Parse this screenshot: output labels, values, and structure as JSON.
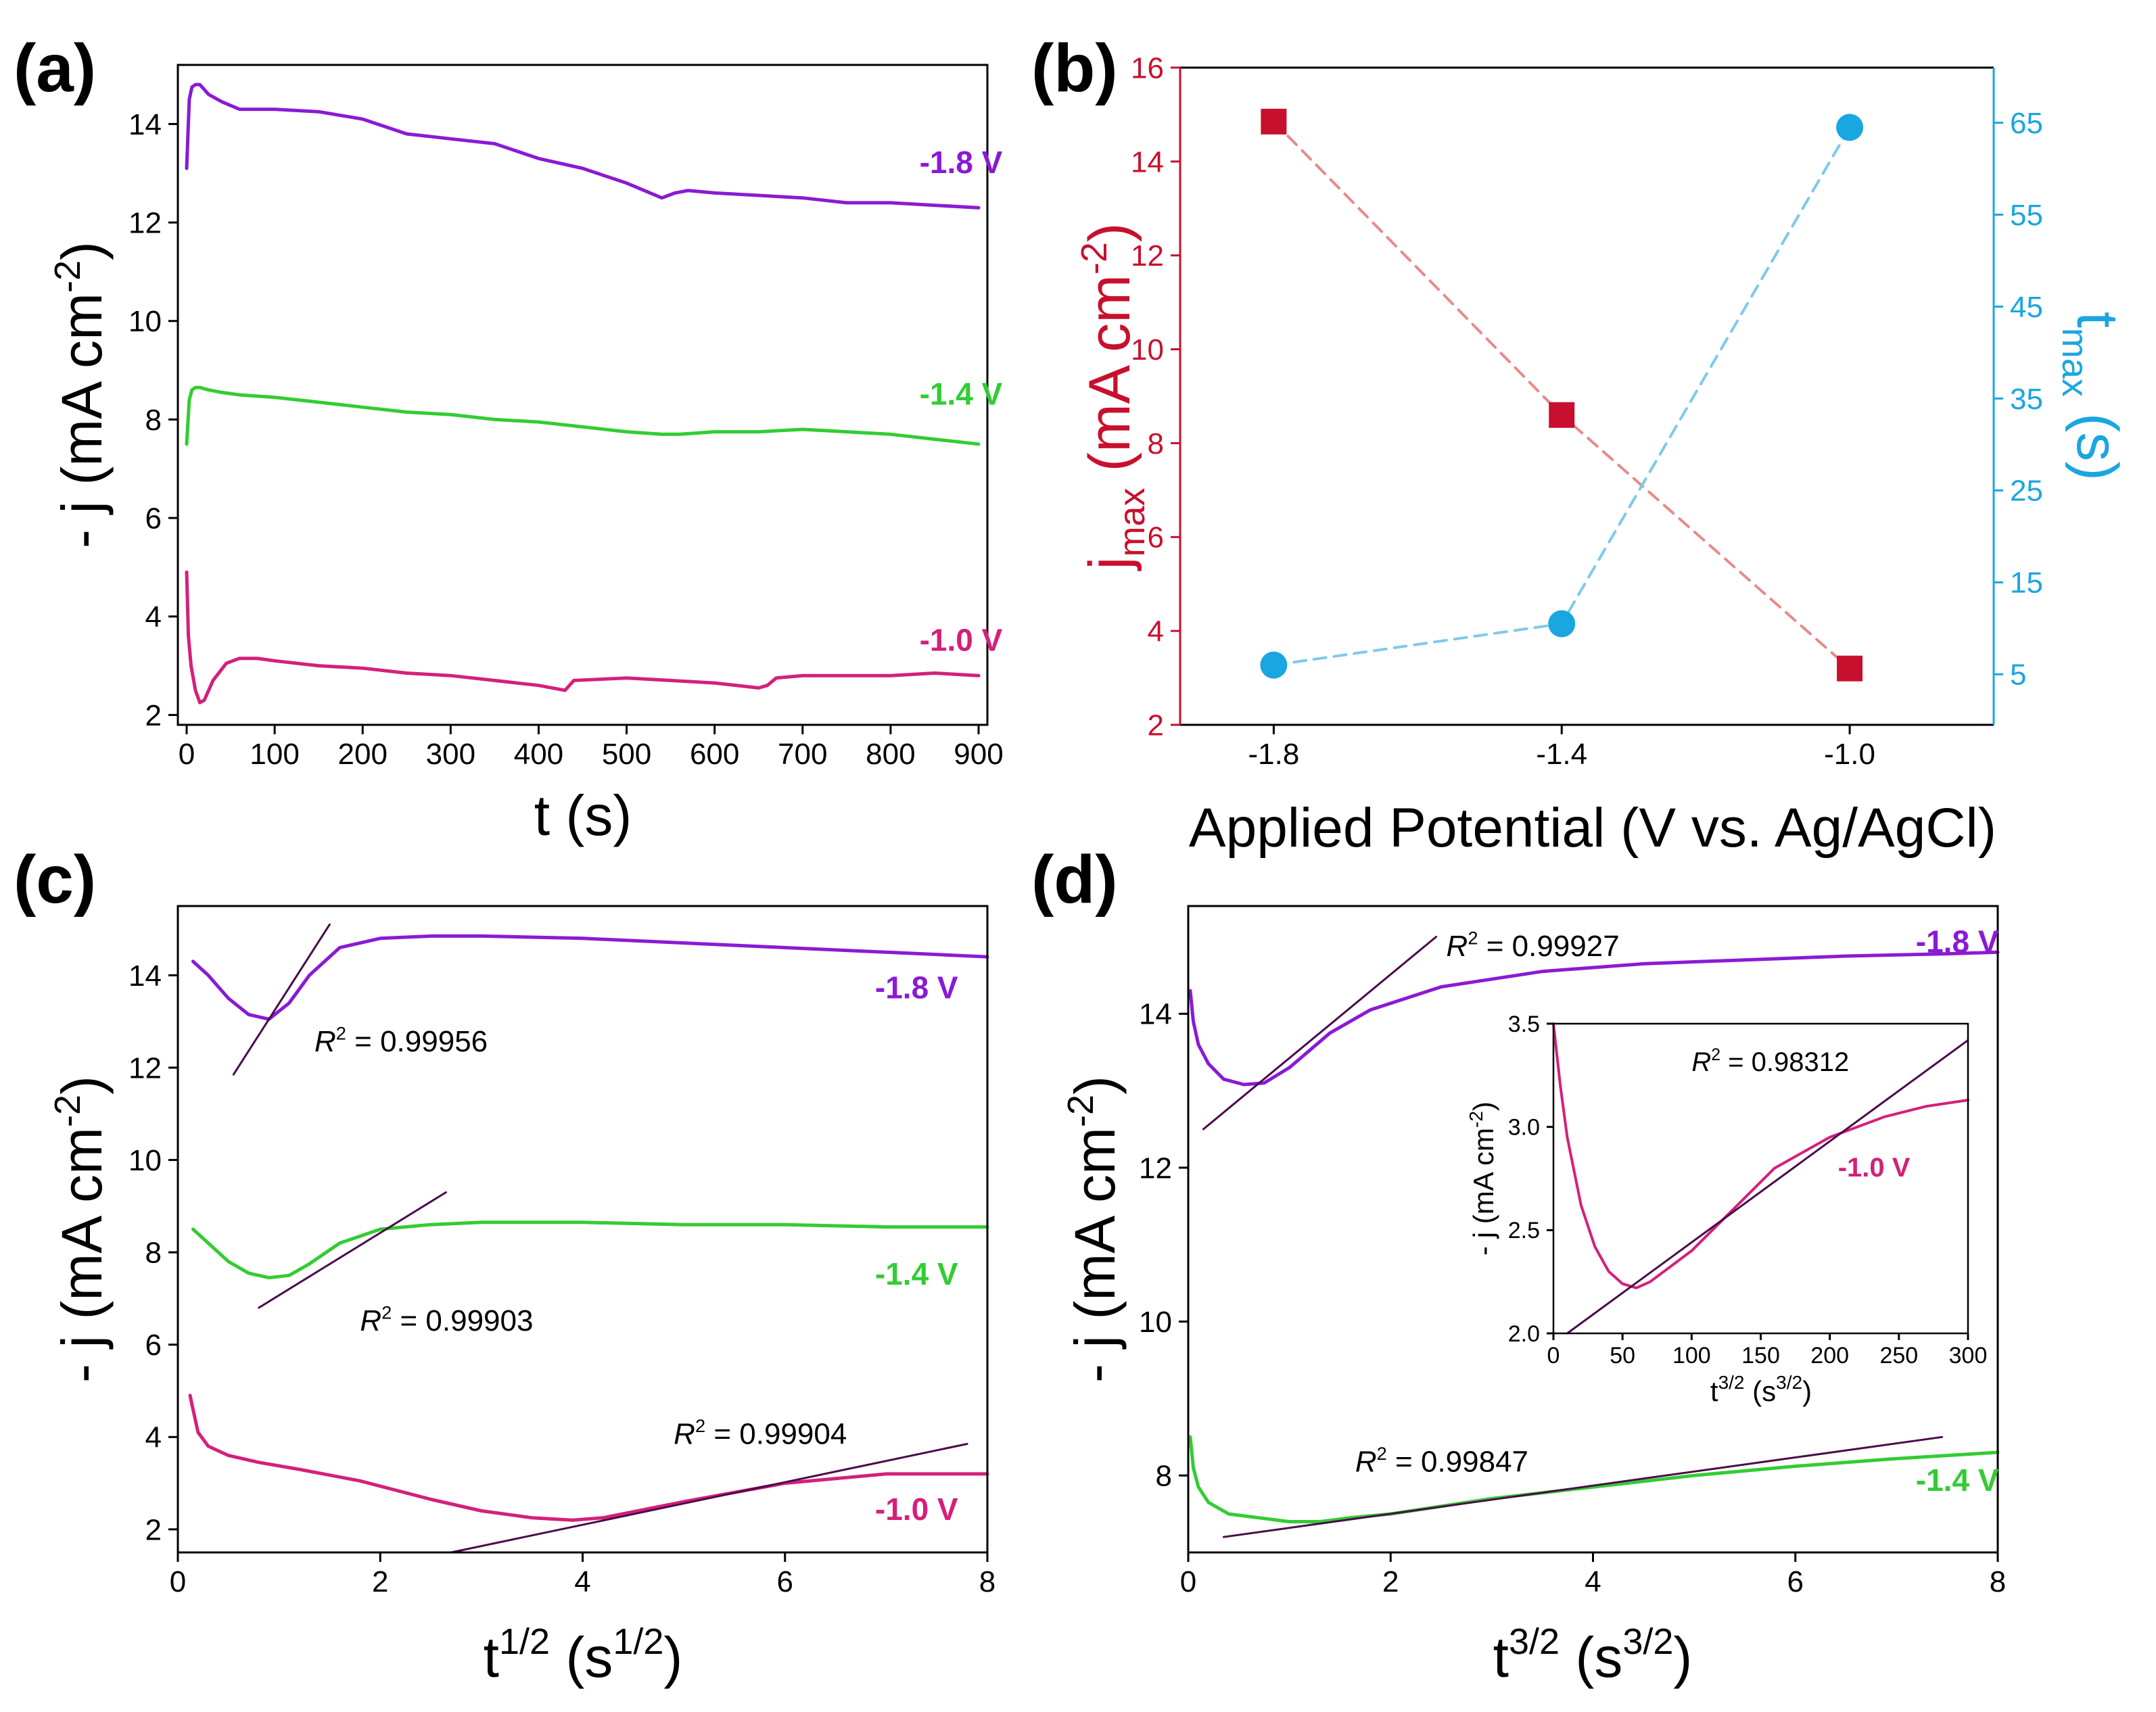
{
  "colors": {
    "purple": "#8a1ad4",
    "green": "#33cc33",
    "magenta": "#d4207a",
    "fit": "#4a0a4a",
    "red": "#c8102e",
    "blue": "#1aa6e0",
    "red_dash": "#e88a8a",
    "blue_dash": "#7fc9ea"
  },
  "chart_data": [
    {
      "id": "a",
      "panel_label": "(a)",
      "type": "line",
      "xlabel": "t (s)",
      "ylabel": "- j (mA cm",
      "ylabel_sup": "-2",
      "ylabel_tail": ")",
      "xlim": [
        -10,
        910
      ],
      "ylim": [
        1.8,
        15.2
      ],
      "xticks": [
        "0",
        "100",
        "200",
        "300",
        "400",
        "500",
        "600",
        "700",
        "800",
        "900"
      ],
      "yticks": [
        "2",
        "4",
        "6",
        "8",
        "10",
        "12",
        "14"
      ],
      "series": [
        {
          "name": "-1.8 V",
          "color": "#8a1ad4",
          "x": [
            0,
            3,
            6,
            10,
            15,
            25,
            40,
            60,
            100,
            150,
            200,
            250,
            300,
            350,
            400,
            450,
            500,
            540,
            555,
            570,
            600,
            650,
            700,
            750,
            800,
            850,
            900
          ],
          "y": [
            13.1,
            14.5,
            14.75,
            14.8,
            14.8,
            14.6,
            14.45,
            14.3,
            14.3,
            14.25,
            14.1,
            13.8,
            13.7,
            13.6,
            13.3,
            13.1,
            12.8,
            12.5,
            12.6,
            12.65,
            12.6,
            12.55,
            12.5,
            12.4,
            12.4,
            12.35,
            12.3
          ]
        },
        {
          "name": "-1.4 V",
          "color": "#33cc33",
          "x": [
            0,
            3,
            6,
            10,
            15,
            25,
            40,
            60,
            100,
            150,
            200,
            250,
            300,
            350,
            400,
            450,
            500,
            540,
            560,
            600,
            650,
            700,
            750,
            800,
            850,
            900
          ],
          "y": [
            7.5,
            8.4,
            8.6,
            8.65,
            8.65,
            8.6,
            8.55,
            8.5,
            8.45,
            8.35,
            8.25,
            8.15,
            8.1,
            8.0,
            7.95,
            7.85,
            7.75,
            7.7,
            7.7,
            7.75,
            7.75,
            7.8,
            7.75,
            7.7,
            7.6,
            7.5
          ]
        },
        {
          "name": "-1.0 V",
          "color": "#d4207a",
          "x": [
            0,
            2,
            5,
            10,
            15,
            20,
            30,
            45,
            60,
            80,
            100,
            150,
            200,
            250,
            300,
            350,
            400,
            430,
            440,
            500,
            550,
            600,
            650,
            660,
            670,
            700,
            750,
            800,
            850,
            900
          ],
          "y": [
            4.9,
            3.6,
            3.0,
            2.5,
            2.25,
            2.3,
            2.7,
            3.05,
            3.15,
            3.15,
            3.1,
            3.0,
            2.95,
            2.85,
            2.8,
            2.7,
            2.6,
            2.5,
            2.7,
            2.75,
            2.7,
            2.65,
            2.55,
            2.6,
            2.75,
            2.8,
            2.8,
            2.8,
            2.85,
            2.8
          ]
        }
      ],
      "annotations": [
        {
          "text": "-1.8 V",
          "x": 880,
          "y": 13.0,
          "color": "#8a1ad4"
        },
        {
          "text": "-1.4 V",
          "x": 880,
          "y": 8.3,
          "color": "#33cc33"
        },
        {
          "text": "-1.0 V",
          "x": 880,
          "y": 3.3,
          "color": "#d4207a"
        }
      ]
    },
    {
      "id": "b",
      "panel_label": "(b)",
      "type": "scatter",
      "xlabel": "Applied Potential (V vs. Ag/AgCl)",
      "ylabel_left": "j",
      "ylabel_left_sub": "max",
      "ylabel_left_tail": " (mA cm",
      "ylabel_left_sup": "-2",
      "ylabel_left_end": ")",
      "ylabel_right": "t",
      "ylabel_right_sub": "max",
      "ylabel_right_tail": " (s)",
      "xlim": [
        -1.93,
        -0.8
      ],
      "ylim_left": [
        2,
        16
      ],
      "ylim_right": [
        -0.5,
        71
      ],
      "xticks": [
        "-1.8",
        "-1.4",
        "-1.0"
      ],
      "yticks_left": [
        "2",
        "4",
        "6",
        "8",
        "10",
        "12",
        "14",
        "16"
      ],
      "yticks_right": [
        "5",
        "15",
        "25",
        "35",
        "45",
        "55",
        "65"
      ],
      "series": [
        {
          "name": "j_max",
          "axis": "left",
          "marker": "square",
          "color": "#c8102e",
          "line_color": "#e88a8a",
          "x": [
            -1.8,
            -1.4,
            -1.0
          ],
          "y": [
            14.85,
            8.6,
            3.2
          ]
        },
        {
          "name": "t_max",
          "axis": "right",
          "marker": "circle",
          "color": "#1aa6e0",
          "line_color": "#7fc9ea",
          "x": [
            -1.8,
            -1.4,
            -1.0
          ],
          "y": [
            6,
            10.5,
            64.5
          ]
        }
      ]
    },
    {
      "id": "c",
      "panel_label": "(c)",
      "type": "line",
      "xlabel": "t",
      "xlabel_sup": "1/2",
      "xlabel_tail": " (s",
      "xlabel_sup2": "1/2",
      "xlabel_end": ")",
      "ylabel": "- j (mA cm",
      "ylabel_sup": "-2",
      "ylabel_tail": ")",
      "xlim": [
        0,
        8
      ],
      "ylim": [
        1.5,
        15.5
      ],
      "xticks": [
        "0",
        "2",
        "4",
        "6",
        "8"
      ],
      "yticks": [
        "2",
        "4",
        "6",
        "8",
        "10",
        "12",
        "14"
      ],
      "series": [
        {
          "name": "-1.8 V",
          "color": "#8a1ad4",
          "x": [
            0.15,
            0.3,
            0.5,
            0.7,
            0.9,
            1.1,
            1.3,
            1.6,
            2.0,
            2.5,
            3.0,
            4.0,
            5.0,
            6.0,
            7.0,
            8.0
          ],
          "y": [
            14.3,
            14.0,
            13.5,
            13.15,
            13.05,
            13.4,
            14.0,
            14.6,
            14.8,
            14.85,
            14.85,
            14.8,
            14.7,
            14.6,
            14.5,
            14.4
          ]
        },
        {
          "name": "-1.4 V",
          "color": "#33cc33",
          "x": [
            0.15,
            0.3,
            0.5,
            0.7,
            0.9,
            1.1,
            1.3,
            1.6,
            2.0,
            2.5,
            3.0,
            4.0,
            5.0,
            6.0,
            7.0,
            8.0
          ],
          "y": [
            8.5,
            8.2,
            7.8,
            7.55,
            7.45,
            7.5,
            7.75,
            8.2,
            8.5,
            8.6,
            8.65,
            8.65,
            8.6,
            8.6,
            8.55,
            8.55
          ]
        },
        {
          "name": "-1.0 V",
          "color": "#d4207a",
          "x": [
            0.12,
            0.15,
            0.2,
            0.3,
            0.5,
            0.8,
            1.2,
            1.8,
            2.5,
            3.0,
            3.5,
            3.9,
            4.2,
            5.0,
            6.0,
            7.0,
            8.0
          ],
          "y": [
            4.9,
            4.6,
            4.1,
            3.8,
            3.6,
            3.45,
            3.3,
            3.05,
            2.65,
            2.4,
            2.25,
            2.2,
            2.25,
            2.6,
            3.0,
            3.2,
            3.2
          ]
        }
      ],
      "fit_lines": [
        {
          "x": [
            0.55,
            1.5
          ],
          "y": [
            11.85,
            15.1
          ],
          "label": "R",
          "label_sup": "2",
          "label_value": " = 0.99956",
          "label_x": 1.35,
          "label_y": 12.35
        },
        {
          "x": [
            0.8,
            2.65
          ],
          "y": [
            6.8,
            9.3
          ],
          "label": "R",
          "label_sup": "2",
          "label_value": " = 0.99903",
          "label_x": 1.8,
          "label_y": 6.3
        },
        {
          "x": [
            2.7,
            7.8
          ],
          "y": [
            1.5,
            3.85
          ],
          "label": "R",
          "label_sup": "2",
          "label_value": " = 0.99904",
          "label_x": 4.9,
          "label_y": 3.85
        }
      ],
      "annotations": [
        {
          "text": "-1.8 V",
          "x": 7.3,
          "y": 13.5,
          "color": "#8a1ad4"
        },
        {
          "text": "-1.4 V",
          "x": 7.3,
          "y": 7.3,
          "color": "#33cc33"
        },
        {
          "text": "-1.0 V",
          "x": 7.3,
          "y": 2.2,
          "color": "#d4207a"
        }
      ]
    },
    {
      "id": "d",
      "panel_label": "(d)",
      "type": "line",
      "xlabel": "t",
      "xlabel_sup": "3/2",
      "xlabel_tail": " (s",
      "xlabel_sup2": "3/2",
      "xlabel_end": ")",
      "ylabel": "- j (mA cm",
      "ylabel_sup": "-2",
      "ylabel_tail": ")",
      "xlim": [
        0,
        8
      ],
      "ylim": [
        7,
        15.4
      ],
      "xticks": [
        "0",
        "2",
        "4",
        "6",
        "8"
      ],
      "yticks": [
        "8",
        "10",
        "12",
        "14"
      ],
      "series": [
        {
          "name": "-1.8 V",
          "color": "#8a1ad4",
          "x": [
            0.02,
            0.05,
            0.1,
            0.2,
            0.35,
            0.55,
            0.75,
            1.0,
            1.4,
            1.8,
            2.5,
            3.5,
            4.5,
            5.5,
            6.5,
            7.5,
            8.0
          ],
          "y": [
            14.3,
            13.9,
            13.6,
            13.35,
            13.15,
            13.08,
            13.1,
            13.3,
            13.75,
            14.05,
            14.35,
            14.55,
            14.65,
            14.7,
            14.75,
            14.78,
            14.8
          ]
        },
        {
          "name": "-1.4 V",
          "color": "#33cc33",
          "x": [
            0.02,
            0.05,
            0.1,
            0.2,
            0.4,
            0.7,
            1.0,
            1.3,
            1.6,
            2.0,
            3.0,
            4.0,
            5.0,
            6.0,
            7.0,
            8.0
          ],
          "y": [
            8.5,
            8.1,
            7.85,
            7.65,
            7.5,
            7.45,
            7.4,
            7.4,
            7.45,
            7.5,
            7.7,
            7.85,
            8.0,
            8.12,
            8.22,
            8.3
          ]
        }
      ],
      "fit_lines": [
        {
          "x": [
            0.15,
            2.45
          ],
          "y": [
            12.5,
            15.0
          ],
          "label": "R",
          "label_sup": "2",
          "label_value": " = 0.99927",
          "label_x": 2.55,
          "label_y": 14.75
        },
        {
          "x": [
            0.35,
            7.45
          ],
          "y": [
            7.2,
            8.5
          ],
          "label": "R",
          "label_sup": "2",
          "label_value": " = 0.99847",
          "label_x": 1.65,
          "label_y": 8.05
        }
      ],
      "annotations": [
        {
          "text": "-1.8 V",
          "x": 7.6,
          "y": 14.8,
          "color": "#8a1ad4"
        },
        {
          "text": "-1.4 V",
          "x": 7.6,
          "y": 7.8,
          "color": "#33cc33"
        }
      ],
      "inset": {
        "xlabel": "t",
        "xlabel_sup": "3/2",
        "xlabel_tail": " (s",
        "xlabel_sup2": "3/2",
        "xlabel_end": ")",
        "ylabel": "- j (mA cm",
        "ylabel_sup": "-2",
        "ylabel_tail": ")",
        "xlim": [
          0,
          300
        ],
        "ylim": [
          2.0,
          3.5
        ],
        "xticks": [
          "0",
          "50",
          "100",
          "150",
          "200",
          "250",
          "300"
        ],
        "yticks": [
          "2.0",
          "2.5",
          "3.0",
          "3.5"
        ],
        "series": [
          {
            "name": "-1.0 V",
            "color": "#d4207a",
            "x": [
              0,
              5,
              10,
              20,
              30,
              40,
              50,
              60,
              70,
              100,
              130,
              160,
              200,
              240,
              270,
              300
            ],
            "y": [
              3.5,
              3.2,
              2.95,
              2.62,
              2.42,
              2.3,
              2.24,
              2.22,
              2.25,
              2.4,
              2.6,
              2.8,
              2.95,
              3.05,
              3.1,
              3.13
            ]
          }
        ],
        "fit_line": {
          "x": [
            10,
            300
          ],
          "y": [
            2.0,
            3.42
          ],
          "label": "R",
          "label_sup": "2",
          "label_value": " = 0.98312",
          "label_x": 100,
          "label_y": 3.27
        },
        "annotation": {
          "text": "-1.0 V",
          "x": 232,
          "y": 2.76,
          "color": "#d4207a"
        }
      }
    }
  ]
}
